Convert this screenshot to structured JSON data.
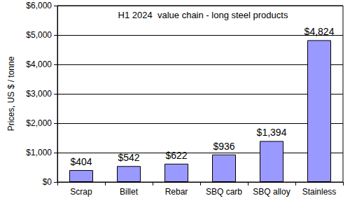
{
  "chart_data": {
    "type": "bar",
    "title": "H1 2024  value chain - long steel products",
    "y_label": "Prices, US $ / tonne",
    "categories": [
      "Scrap",
      "Billet",
      "Rebar",
      "SBQ carb",
      "SBQ alloy",
      "Stainless"
    ],
    "values": [
      404,
      542,
      622,
      936,
      1394,
      4824
    ],
    "value_labels": [
      "$404",
      "$542",
      "$622",
      "$936",
      "$1,394",
      "$4,824"
    ],
    "color": "#9999ff",
    "ylim": [
      0,
      6000
    ],
    "yticks": [
      {
        "value": 0,
        "label": "$0"
      },
      {
        "value": 1000,
        "label": "$1,000"
      },
      {
        "value": 2000,
        "label": "$2,000"
      },
      {
        "value": 3000,
        "label": "$3,000"
      },
      {
        "value": 4000,
        "label": "$4,000"
      },
      {
        "value": 5000,
        "label": "$5,000"
      },
      {
        "value": 6000,
        "label": "$6,000"
      }
    ],
    "grid": true,
    "data_labels": true
  }
}
